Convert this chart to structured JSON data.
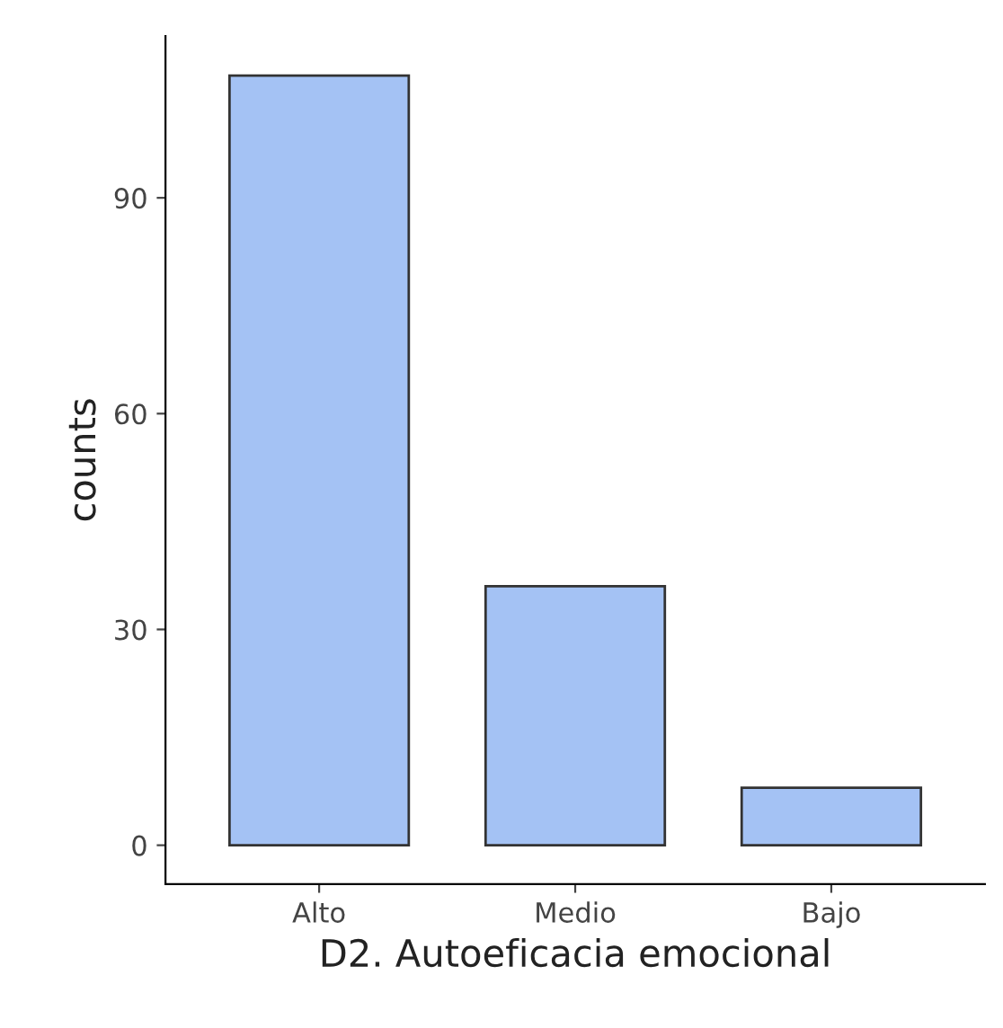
{
  "chart_data": {
    "type": "bar",
    "xlabel": "D2. Autoeficacia emocional",
    "ylabel": "counts",
    "categories": [
      "Alto",
      "Medio",
      "Bajo"
    ],
    "values": [
      107,
      36,
      8
    ],
    "color": "#a4c2f4",
    "ylim": [
      -5.4,
      112.5
    ],
    "yticks": [
      0,
      30,
      60,
      90
    ],
    "grid": false
  }
}
